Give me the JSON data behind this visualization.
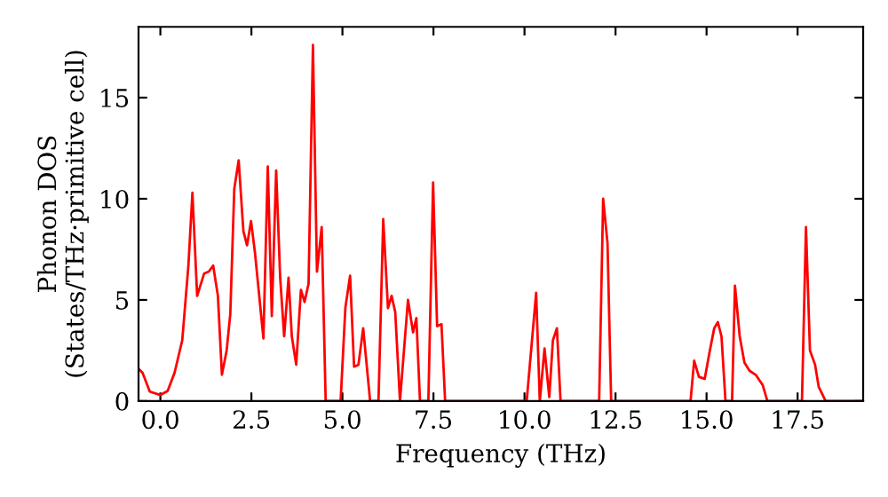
{
  "chart_data": {
    "type": "line",
    "xlabel": "Frequency (THz)",
    "ylabel": "Phonon DOS\n(States/THz·primitive cell)",
    "x": [
      -0.6,
      -0.49,
      -0.29,
      0,
      0.2,
      0.39,
      0.6,
      0.77,
      0.88,
      1.01,
      1.2,
      1.33,
      1.45,
      1.58,
      1.69,
      1.82,
      1.92,
      2.03,
      2.15,
      2.28,
      2.38,
      2.49,
      2.6,
      2.83,
      2.95,
      3.06,
      3.18,
      3.29,
      3.4,
      3.52,
      3.61,
      3.73,
      3.86,
      3.96,
      4.07,
      4.19,
      4.3,
      4.43,
      4.54,
      4.95,
      5.08,
      5.21,
      5.32,
      5.44,
      5.57,
      5.76,
      5.99,
      6.12,
      6.25,
      6.35,
      6.45,
      6.58,
      6.8,
      6.94,
      7.03,
      7.13,
      7.36,
      7.49,
      7.6,
      7.72,
      7.82,
      10.06,
      10.32,
      10.42,
      10.55,
      10.68,
      10.78,
      10.89,
      10.99,
      12.05,
      12.16,
      12.28,
      12.38,
      14.56,
      14.66,
      14.79,
      14.95,
      15.08,
      15.21,
      15.31,
      15.41,
      15.52,
      15.7,
      15.78,
      15.91,
      16.04,
      16.18,
      16.35,
      16.54,
      16.67,
      17.62,
      17.73,
      17.84,
      17.98,
      18.08,
      18.27,
      19.3
    ],
    "series": [
      {
        "color": "#ff0000",
        "values": [
          1.6,
          1.4,
          0.47,
          0.3,
          0.5,
          1.4,
          3.0,
          6.7,
          10.3,
          5.2,
          6.3,
          6.4,
          6.7,
          5.2,
          1.3,
          2.5,
          4.3,
          10.5,
          11.9,
          8.4,
          7.7,
          8.9,
          7.3,
          3.1,
          11.6,
          4.2,
          11.4,
          6.1,
          3.2,
          6.1,
          3.2,
          1.8,
          5.5,
          4.9,
          5.8,
          17.6,
          6.4,
          8.6,
          0,
          0,
          4.6,
          6.2,
          1.7,
          1.8,
          3.6,
          0,
          0,
          9.0,
          4.6,
          5.2,
          4.4,
          0,
          5.0,
          3.4,
          4.1,
          0,
          0,
          10.8,
          3.7,
          3.8,
          0,
          0,
          5.35,
          0,
          2.6,
          0.2,
          3.0,
          3.6,
          0,
          0,
          10.0,
          7.8,
          0,
          0,
          2.0,
          1.2,
          1.1,
          2.4,
          3.6,
          3.9,
          3.2,
          0,
          0,
          5.7,
          3.2,
          1.9,
          1.5,
          1.3,
          0.8,
          0,
          0,
          8.6,
          2.5,
          1.8,
          0.7,
          0,
          0
        ]
      }
    ],
    "xlim": [
      -0.6,
      19.3
    ],
    "ylim": [
      0,
      18.5
    ],
    "xticks": [
      {
        "value": 0,
        "label": "0.0"
      },
      {
        "value": 2.5,
        "label": "2.5"
      },
      {
        "value": 5,
        "label": "5.0"
      },
      {
        "value": 7.5,
        "label": "7.5"
      },
      {
        "value": 10,
        "label": "10.0"
      },
      {
        "value": 12.5,
        "label": "12.5"
      },
      {
        "value": 15,
        "label": "15.0"
      },
      {
        "value": 17.5,
        "label": "17.5"
      }
    ],
    "yticks": [
      0,
      5,
      10,
      15
    ],
    "grid": false,
    "legend": false,
    "marker": "none",
    "line_style": "solid"
  }
}
